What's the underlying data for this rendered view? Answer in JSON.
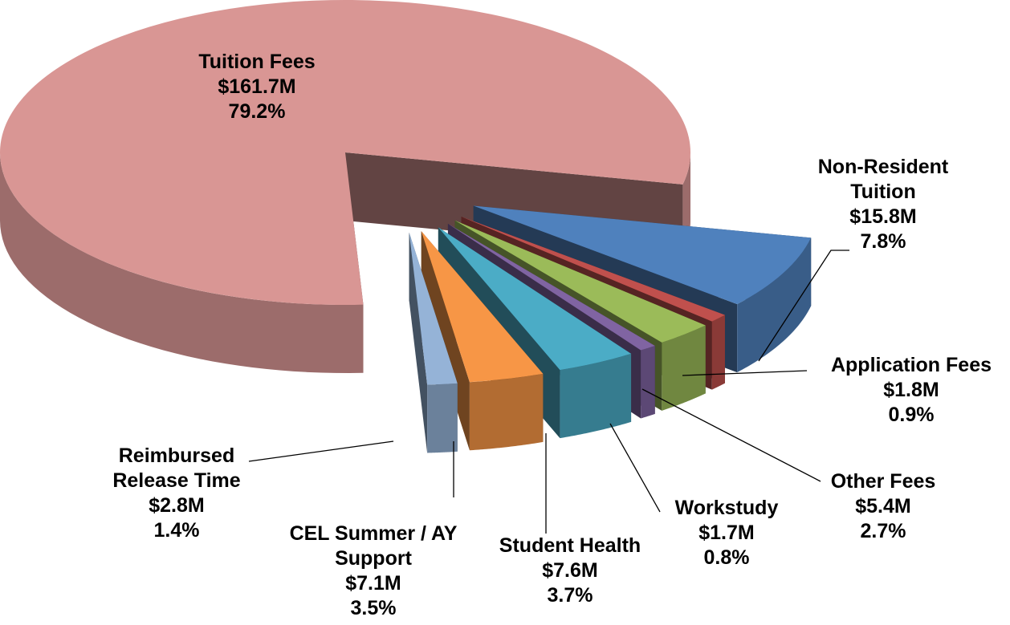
{
  "chart_data": {
    "type": "pie",
    "categories": [
      "Tuition Fees",
      "Non-Resident Tuition",
      "Application Fees",
      "Other Fees",
      "Workstudy",
      "Student Health",
      "CEL Summer / AY Support",
      "Reimbursed Release Time"
    ],
    "values": [
      79.2,
      7.8,
      0.9,
      2.7,
      0.8,
      3.7,
      3.5,
      1.4
    ],
    "value_labels": [
      "79.2%",
      "7.8%",
      "0.9%",
      "2.7%",
      "0.8%",
      "3.7%",
      "3.5%",
      "1.4%"
    ],
    "amounts": [
      161700000,
      15800000,
      1800000,
      5400000,
      1700000,
      7600000,
      7100000,
      2800000
    ],
    "amount_labels": [
      "$161.7M",
      "$15.8M",
      "$1.8M",
      "$5.4M",
      "$1.7M",
      "$7.6M",
      "$7.1M",
      "$2.8M"
    ],
    "colors": [
      "#d99694",
      "#4f81bd",
      "#c0504d",
      "#9bbb59",
      "#8064a2",
      "#4bacc6",
      "#f79646",
      "#95b3d7"
    ]
  }
}
